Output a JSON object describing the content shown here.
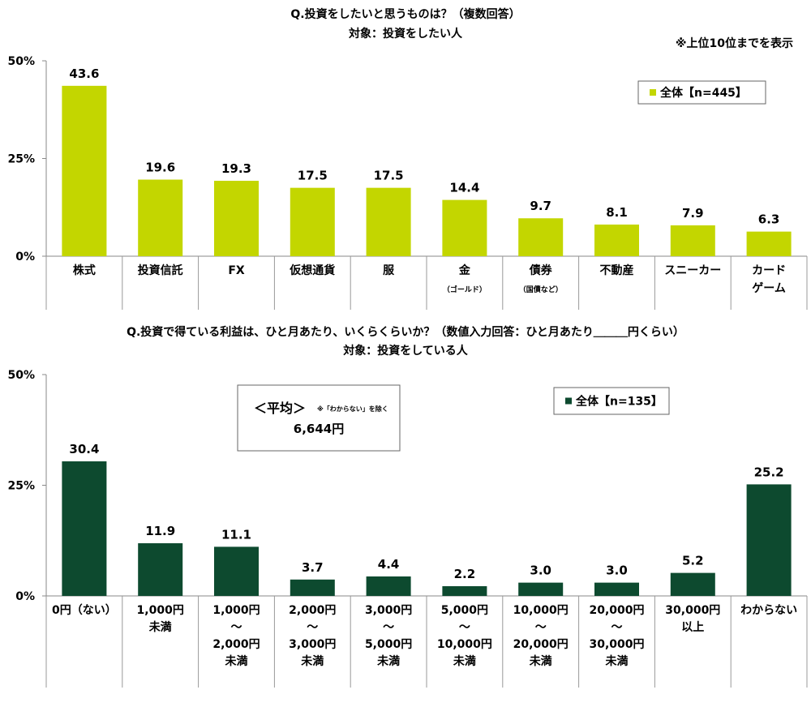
{
  "chart_data": [
    {
      "type": "bar",
      "title": "Q.投資をしたいと思うものは？（複数回答）",
      "subtitle": "対象：投資をしたい人",
      "note": "※上位10位までを表示",
      "ylim": [
        0,
        50
      ],
      "yticks": [
        "0%",
        "25%",
        "50%"
      ],
      "grid": false,
      "legend_position": "top-right",
      "color": "#c3d600",
      "categories": [
        {
          "lines": [
            "株式"
          ]
        },
        {
          "lines": [
            "投資信託"
          ]
        },
        {
          "lines": [
            "FX"
          ]
        },
        {
          "lines": [
            "仮想通貨"
          ]
        },
        {
          "lines": [
            "服"
          ]
        },
        {
          "lines": [
            "金"
          ],
          "sub": "（ゴールド）"
        },
        {
          "lines": [
            "債券"
          ],
          "sub": "（国債など）"
        },
        {
          "lines": [
            "不動産"
          ]
        },
        {
          "lines": [
            "スニーカー"
          ]
        },
        {
          "lines": [
            "カード",
            "ゲーム"
          ]
        }
      ],
      "series": [
        {
          "name": "全体【n=445】",
          "values": [
            43.6,
            19.6,
            19.3,
            17.5,
            17.5,
            14.4,
            9.7,
            8.1,
            7.9,
            6.3
          ]
        }
      ],
      "data_labels": [
        "43.6",
        "19.6",
        "19.3",
        "17.5",
        "17.5",
        "14.4",
        "9.7",
        "8.1",
        "7.9",
        "6.3"
      ]
    },
    {
      "type": "bar",
      "title": "Q.投資で得ている利益は、ひと月あたり、いくらくらいか？（数値入力回答：ひと月あたり＿＿＿円くらい）",
      "subtitle": "対象：投資をしている人",
      "ylim": [
        0,
        50
      ],
      "yticks": [
        "0%",
        "25%",
        "50%"
      ],
      "grid": false,
      "legend_position": "top-right",
      "color": "#0d4a2f",
      "annotation": {
        "heading": "＜平均＞",
        "note": "※「わからない」を除く",
        "value": "6,644円"
      },
      "categories": [
        {
          "lines": [
            "0円（ない）"
          ]
        },
        {
          "lines": [
            "1,000円",
            "未満"
          ]
        },
        {
          "lines": [
            "1,000円",
            "～",
            "2,000円",
            "未満"
          ]
        },
        {
          "lines": [
            "2,000円",
            "～",
            "3,000円",
            "未満"
          ]
        },
        {
          "lines": [
            "3,000円",
            "～",
            "5,000円",
            "未満"
          ]
        },
        {
          "lines": [
            "5,000円",
            "～",
            "10,000円",
            "未満"
          ]
        },
        {
          "lines": [
            "10,000円",
            "～",
            "20,000円",
            "未満"
          ]
        },
        {
          "lines": [
            "20,000円",
            "～",
            "30,000円",
            "未満"
          ]
        },
        {
          "lines": [
            "30,000円",
            "以上"
          ]
        },
        {
          "lines": [
            "わからない"
          ]
        }
      ],
      "series": [
        {
          "name": "全体【n=135】",
          "values": [
            30.4,
            11.9,
            11.1,
            3.7,
            4.4,
            2.2,
            3.0,
            3.0,
            5.2,
            25.2
          ]
        }
      ],
      "data_labels": [
        "30.4",
        "11.9",
        "11.1",
        "3.7",
        "4.4",
        "2.2",
        "3.0",
        "3.0",
        "5.2",
        "25.2"
      ]
    }
  ]
}
